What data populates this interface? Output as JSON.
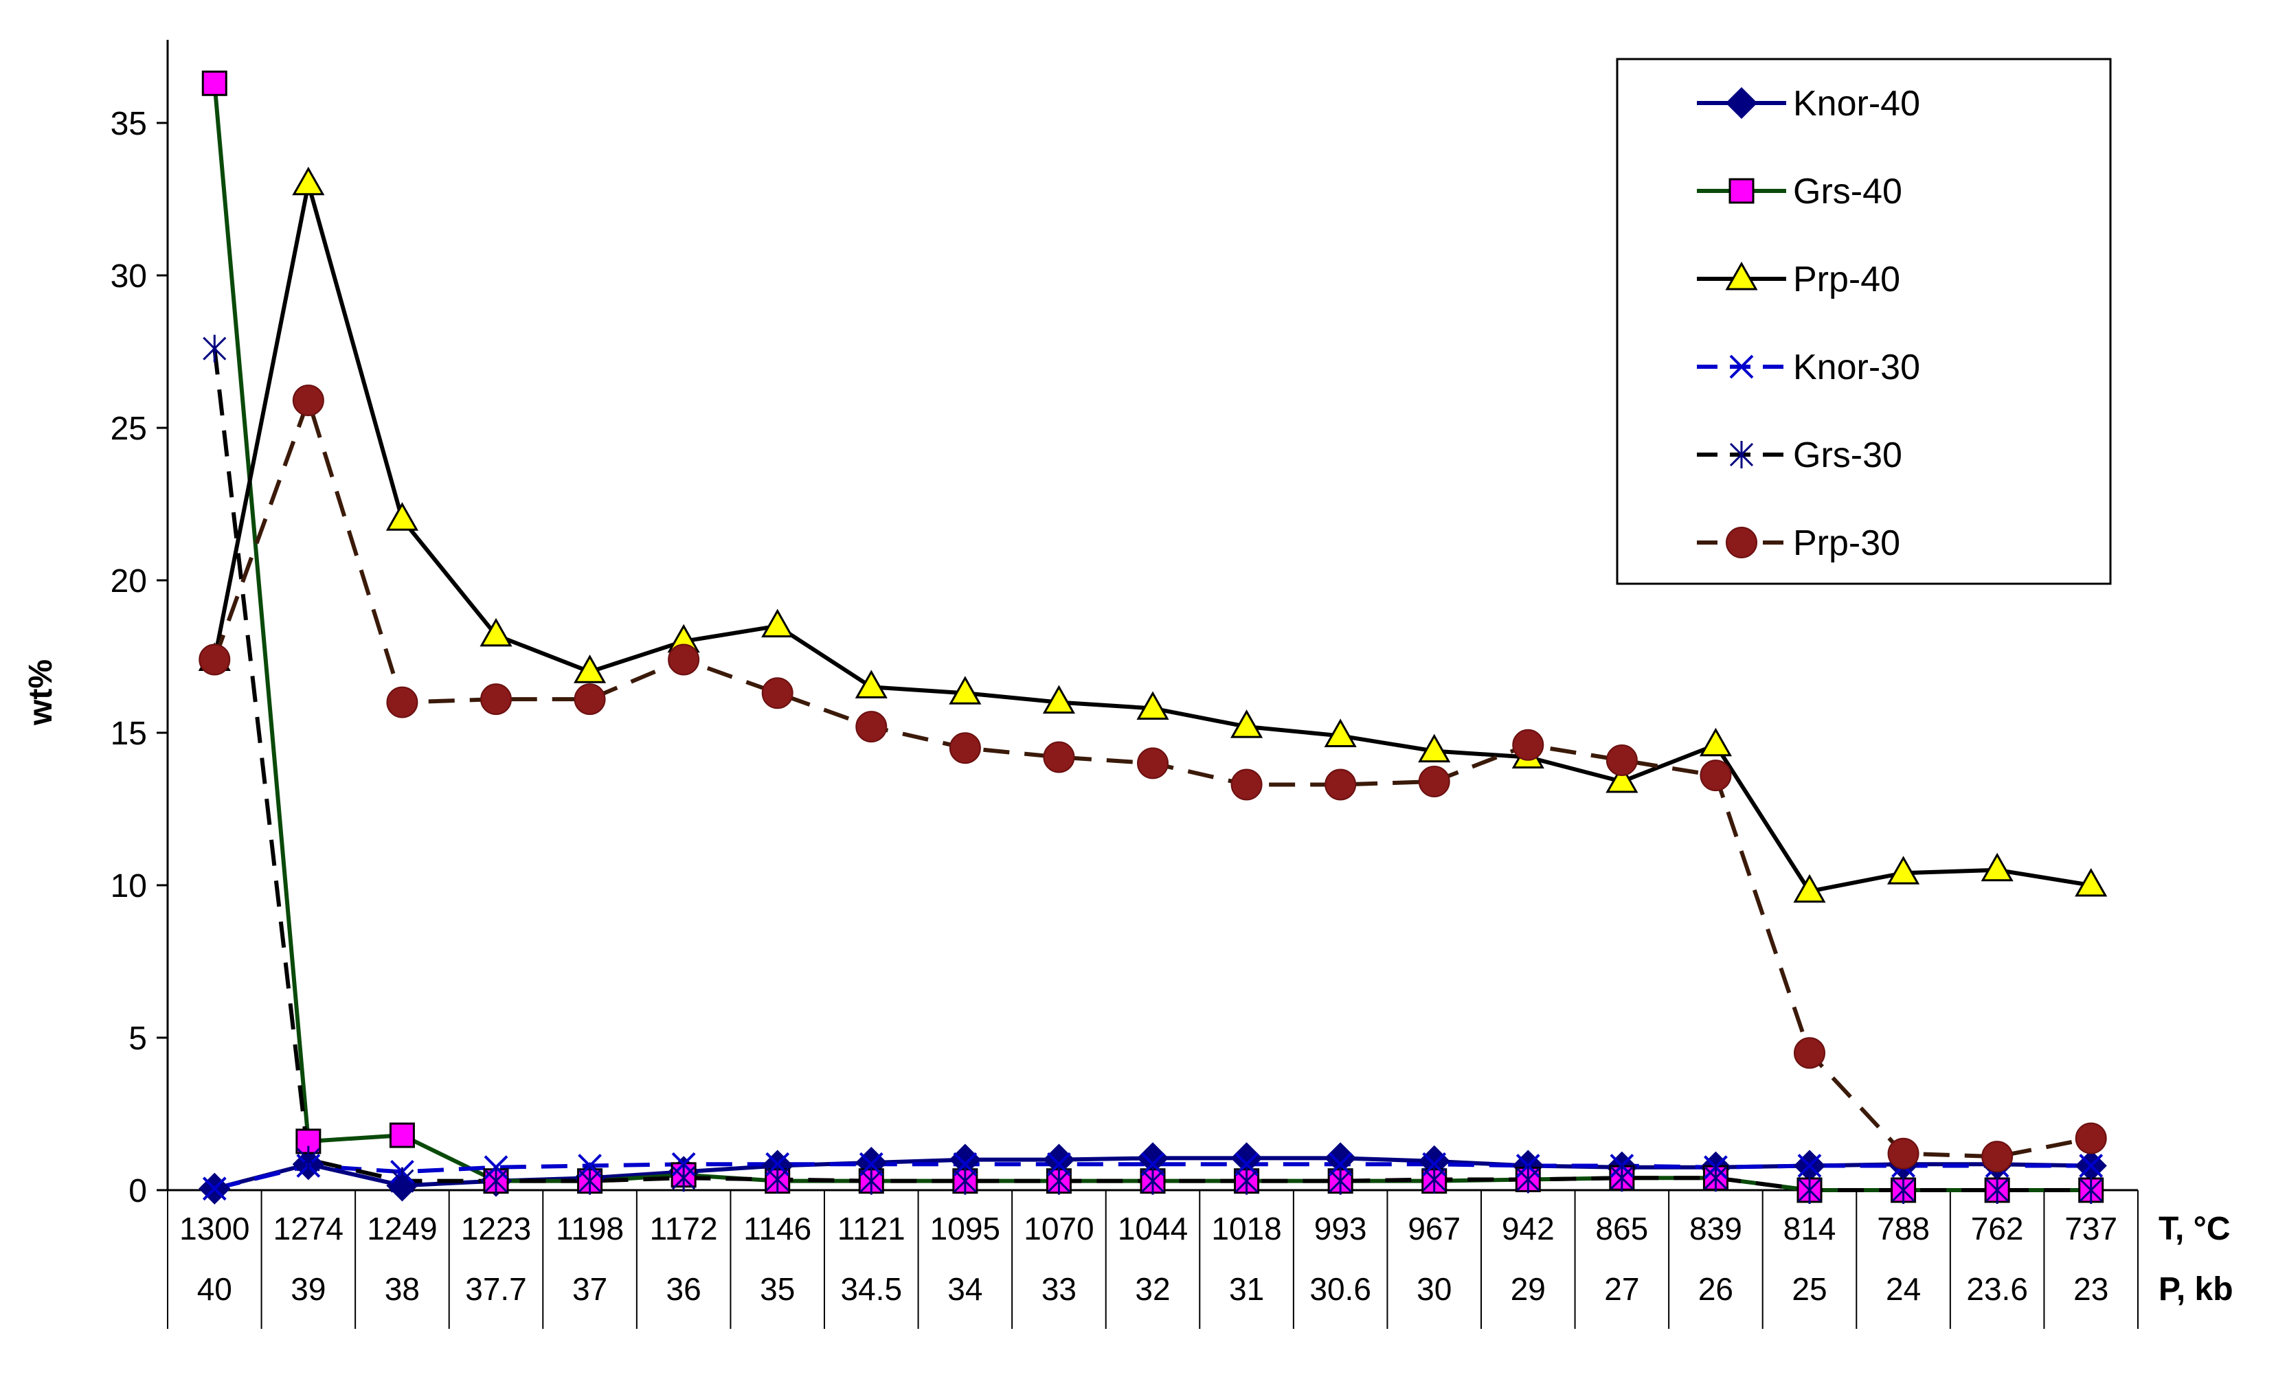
{
  "chart_data": {
    "type": "line",
    "title": "",
    "ylabel": "wt%",
    "ylim": [
      0,
      37.5
    ],
    "yticks": [
      0,
      5,
      10,
      15,
      20,
      25,
      30,
      35
    ],
    "row_labels": [
      "T, °C",
      "P, kb"
    ],
    "temperature": [
      "1300",
      "1274",
      "1249",
      "1223",
      "1198",
      "1172",
      "1146",
      "1121",
      "1095",
      "1070",
      "1044",
      "1018",
      "993",
      "967",
      "942",
      "865",
      "839",
      "814",
      "788",
      "762",
      "737"
    ],
    "pressure": [
      "40",
      "39",
      "38",
      "37.7",
      "37",
      "36",
      "35",
      "34.5",
      "34",
      "33",
      "32",
      "31",
      "30.6",
      "30",
      "29",
      "27",
      "26",
      "25",
      "24",
      "23.6",
      "23"
    ],
    "legend_position": "top-right",
    "series": [
      {
        "name": "Knor-40",
        "color": "#000080",
        "dash": "solid",
        "marker": "diamond",
        "marker_fill": "#000080",
        "values": [
          0.05,
          0.85,
          0.15,
          0.3,
          0.4,
          0.6,
          0.8,
          0.9,
          1.0,
          1.0,
          1.05,
          1.05,
          1.05,
          0.95,
          0.8,
          0.75,
          0.75,
          0.8,
          0.85,
          0.85,
          0.8
        ]
      },
      {
        "name": "Grs-40",
        "color": "#0a4a0a",
        "dash": "solid",
        "marker": "square",
        "marker_fill": "#ff00ff",
        "values": [
          36.3,
          1.6,
          1.8,
          0.3,
          0.3,
          0.5,
          0.3,
          0.3,
          0.3,
          0.3,
          0.3,
          0.3,
          0.3,
          0.3,
          0.35,
          0.4,
          0.4,
          0.0,
          0.0,
          0.0,
          0.0
        ]
      },
      {
        "name": "Prp-40",
        "color": "#000000",
        "dash": "solid",
        "marker": "triangle",
        "marker_fill": "#ffff00",
        "values": [
          17.4,
          33.0,
          22.0,
          18.2,
          17.0,
          18.0,
          18.5,
          16.5,
          16.3,
          16.0,
          15.8,
          15.2,
          14.9,
          14.4,
          14.2,
          13.4,
          14.6,
          9.8,
          10.4,
          10.5,
          10.0
        ]
      },
      {
        "name": "Knor-30",
        "color": "#0000cc",
        "dash": "dashed",
        "marker": "x",
        "marker_fill": "none",
        "values": [
          0.05,
          0.8,
          0.6,
          0.75,
          0.8,
          0.85,
          0.85,
          0.85,
          0.85,
          0.85,
          0.85,
          0.85,
          0.85,
          0.85,
          0.8,
          0.8,
          0.75,
          0.8,
          0.8,
          0.8,
          0.8
        ]
      },
      {
        "name": "Grs-30",
        "color": "#000000",
        "dash": "dashed",
        "marker": "asterisk",
        "marker_fill": "none",
        "values": [
          27.6,
          1.0,
          0.3,
          0.3,
          0.3,
          0.4,
          0.35,
          0.3,
          0.3,
          0.3,
          0.3,
          0.3,
          0.3,
          0.35,
          0.35,
          0.4,
          0.4,
          0.0,
          0.0,
          0.0,
          0.0
        ]
      },
      {
        "name": "Prp-30",
        "color": "#3b1a0a",
        "dash": "dashed",
        "marker": "circle",
        "marker_fill": "#8b1a1a",
        "values": [
          17.4,
          25.9,
          16.0,
          16.1,
          16.1,
          17.4,
          16.3,
          15.2,
          14.5,
          14.2,
          14.0,
          13.3,
          13.3,
          13.4,
          14.6,
          14.1,
          13.6,
          4.5,
          1.2,
          1.1,
          1.7
        ]
      }
    ]
  }
}
